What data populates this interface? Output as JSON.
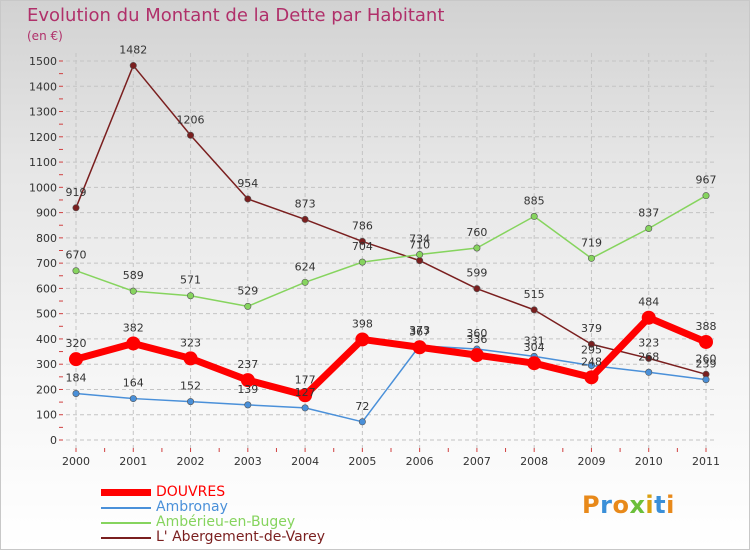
{
  "chart_data": {
    "type": "line",
    "title": "Evolution du Montant de la Dette par Habitant",
    "unit": "(en €)",
    "categories": [
      "2000",
      "2001",
      "2002",
      "2003",
      "2004",
      "2005",
      "2006",
      "2007",
      "2008",
      "2009",
      "2010",
      "2011"
    ],
    "ylim": [
      0,
      1500
    ],
    "yticks": [
      "0",
      "100",
      "200",
      "300",
      "400",
      "500",
      "600",
      "700",
      "800",
      "900",
      "1000",
      "1100",
      "1200",
      "1300",
      "1400",
      "1500"
    ],
    "grid": true,
    "legend_position": "bottom-left",
    "series": [
      {
        "name": "DOUVRES",
        "color": "#ff0000",
        "values": [
          320,
          382,
          323,
          237,
          177,
          398,
          367,
          336,
          304,
          248,
          484,
          388
        ]
      },
      {
        "name": "Ambronay",
        "color": "#4a90d9",
        "values": [
          184,
          164,
          152,
          139,
          127,
          72,
          373,
          360,
          331,
          295,
          268,
          239
        ]
      },
      {
        "name": "Ambérieu-en-Bugey",
        "color": "#86d45e",
        "values": [
          670,
          589,
          571,
          529,
          624,
          704,
          734,
          760,
          885,
          719,
          837,
          967
        ]
      },
      {
        "name": "L' Abergement-de-Varey",
        "color": "#7a1f1f",
        "values": [
          919,
          1482,
          1206,
          954,
          873,
          786,
          710,
          599,
          515,
          379,
          323,
          260
        ]
      }
    ]
  },
  "logo": {
    "letters": [
      "P",
      "r",
      "o",
      "x",
      "i",
      "t",
      "i"
    ],
    "colors": [
      "#e8891a",
      "#3a8fd8",
      "#e8891a",
      "#6bbf3a",
      "#d9a010",
      "#3a8fd8",
      "#e8891a"
    ]
  }
}
